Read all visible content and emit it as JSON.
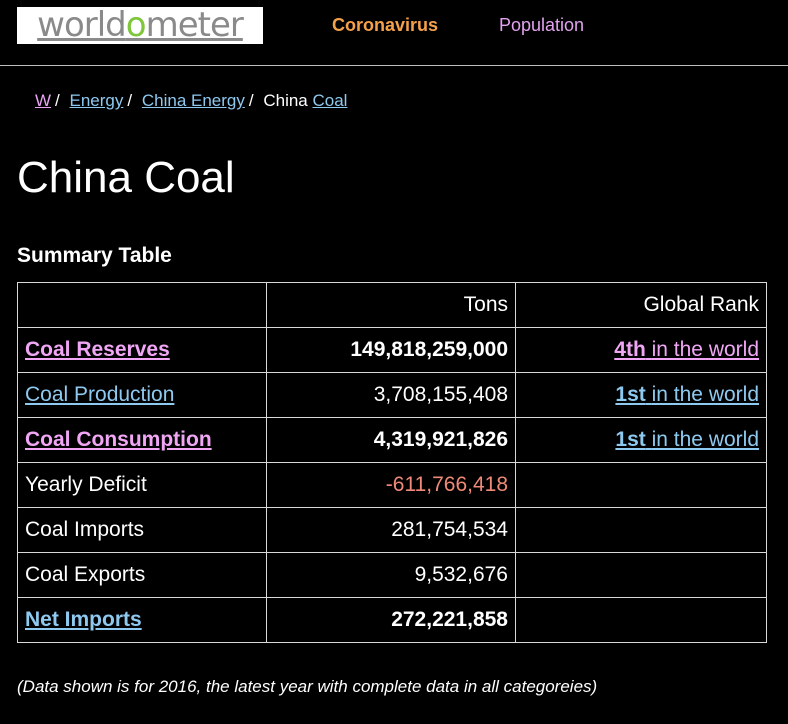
{
  "header": {
    "logo_text": "worldometer",
    "nav": {
      "coronavirus": "Coronavirus",
      "population": "Population"
    }
  },
  "breadcrumb": {
    "home": "W",
    "energy": "Energy",
    "china_energy": "China Energy",
    "china_text": "China",
    "coal": "Coal"
  },
  "page_title": "China Coal",
  "summary_title": "Summary Table",
  "table": {
    "headers": {
      "label": "",
      "tons": "Tons",
      "rank": "Global Rank"
    },
    "rows": [
      {
        "label": "Coal Reserves",
        "tons": "149,818,259,000",
        "rank_num": "4th",
        "rank_text": "in the world"
      },
      {
        "label": "Coal Production",
        "tons": "3,708,155,408",
        "rank_num": "1st",
        "rank_text": "in the world"
      },
      {
        "label": "Coal Consumption",
        "tons": "4,319,921,826",
        "rank_num": "1st",
        "rank_text": "in the world"
      },
      {
        "label": "Yearly Deficit",
        "tons": "-611,766,418"
      },
      {
        "label": "Coal Imports",
        "tons": "281,754,534"
      },
      {
        "label": "Coal Exports",
        "tons": "9,532,676"
      },
      {
        "label": "Net Imports",
        "tons": "272,221,858"
      }
    ]
  },
  "footnote": "(Data shown is for 2016, the latest year with complete data in all categoreies)",
  "colors": {
    "background": "#000000",
    "coronavirus_link": "#f5a14a",
    "population_link": "#e2a2f0",
    "pink_link": "#f1a6f5",
    "blue_link": "#8ec9f0",
    "negative_value": "#f08a78"
  }
}
